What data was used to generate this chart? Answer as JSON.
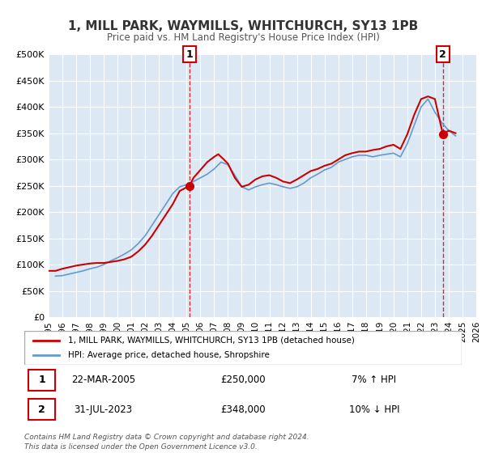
{
  "title": "1, MILL PARK, WAYMILLS, WHITCHURCH, SY13 1PB",
  "subtitle": "Price paid vs. HM Land Registry's House Price Index (HPI)",
  "background_color": "#ffffff",
  "plot_bg_color": "#dce9f5",
  "grid_color": "#ffffff",
  "ylabel": "",
  "ylim": [
    0,
    500000
  ],
  "yticks": [
    0,
    50000,
    100000,
    150000,
    200000,
    250000,
    300000,
    350000,
    400000,
    450000,
    500000
  ],
  "ytick_labels": [
    "£0",
    "£50K",
    "£100K",
    "£150K",
    "£200K",
    "£250K",
    "£300K",
    "£350K",
    "£400K",
    "£450K",
    "£500K"
  ],
  "xlim_start": 1995,
  "xlim_end": 2026,
  "xticks": [
    1995,
    1996,
    1997,
    1998,
    1999,
    2000,
    2001,
    2002,
    2003,
    2004,
    2005,
    2006,
    2007,
    2008,
    2009,
    2010,
    2011,
    2012,
    2013,
    2014,
    2015,
    2016,
    2017,
    2018,
    2019,
    2020,
    2021,
    2022,
    2023,
    2024,
    2025,
    2026
  ],
  "sale1_x": 2005.22,
  "sale1_y": 250000,
  "sale1_label": "22-MAR-2005",
  "sale1_price": "£250,000",
  "sale1_hpi": "7% ↑ HPI",
  "sale2_x": 2023.58,
  "sale2_y": 348000,
  "sale2_label": "31-JUL-2023",
  "sale2_price": "£348,000",
  "sale2_hpi": "10% ↓ HPI",
  "line1_color": "#cc0000",
  "line2_color": "#6699cc",
  "legend1_label": "1, MILL PARK, WAYMILLS, WHITCHURCH, SY13 1PB (detached house)",
  "legend2_label": "HPI: Average price, detached house, Shropshire",
  "footnote1": "Contains HM Land Registry data © Crown copyright and database right 2024.",
  "footnote2": "This data is licensed under the Open Government Licence v3.0.",
  "hpi_data": {
    "years": [
      1995.5,
      1996.0,
      1996.5,
      1997.0,
      1997.5,
      1998.0,
      1998.5,
      1999.0,
      1999.5,
      2000.0,
      2000.5,
      2001.0,
      2001.5,
      2002.0,
      2002.5,
      2003.0,
      2003.5,
      2004.0,
      2004.5,
      2005.0,
      2005.5,
      2006.0,
      2006.5,
      2007.0,
      2007.5,
      2008.0,
      2008.5,
      2009.0,
      2009.5,
      2010.0,
      2010.5,
      2011.0,
      2011.5,
      2012.0,
      2012.5,
      2013.0,
      2013.5,
      2014.0,
      2014.5,
      2015.0,
      2015.5,
      2016.0,
      2016.5,
      2017.0,
      2017.5,
      2018.0,
      2018.5,
      2019.0,
      2019.5,
      2020.0,
      2020.5,
      2021.0,
      2021.5,
      2022.0,
      2022.5,
      2023.0,
      2023.5,
      2024.0,
      2024.5
    ],
    "values": [
      78000,
      79000,
      82000,
      85000,
      88000,
      92000,
      95000,
      100000,
      107000,
      113000,
      120000,
      128000,
      140000,
      155000,
      175000,
      195000,
      215000,
      235000,
      248000,
      252000,
      258000,
      265000,
      272000,
      282000,
      295000,
      290000,
      270000,
      248000,
      242000,
      248000,
      252000,
      255000,
      252000,
      248000,
      245000,
      248000,
      255000,
      265000,
      272000,
      280000,
      285000,
      295000,
      300000,
      305000,
      308000,
      308000,
      305000,
      308000,
      310000,
      312000,
      305000,
      330000,
      365000,
      400000,
      415000,
      390000,
      370000,
      355000,
      345000
    ]
  },
  "price_data": {
    "years": [
      1995.0,
      1995.5,
      1996.0,
      1996.5,
      1997.0,
      1997.5,
      1998.0,
      1998.5,
      1999.0,
      1999.5,
      2000.0,
      2000.5,
      2001.0,
      2001.5,
      2002.0,
      2002.5,
      2003.0,
      2003.5,
      2004.0,
      2004.5,
      2005.22,
      2005.5,
      2006.0,
      2006.5,
      2007.0,
      2007.3,
      2007.7,
      2008.0,
      2008.5,
      2009.0,
      2009.5,
      2010.0,
      2010.5,
      2011.0,
      2011.5,
      2012.0,
      2012.5,
      2013.0,
      2013.5,
      2014.0,
      2014.5,
      2015.0,
      2015.5,
      2016.0,
      2016.5,
      2017.0,
      2017.5,
      2018.0,
      2018.5,
      2019.0,
      2019.5,
      2020.0,
      2020.5,
      2021.0,
      2021.5,
      2022.0,
      2022.5,
      2023.0,
      2023.58,
      2024.0,
      2024.5
    ],
    "values": [
      88000,
      88000,
      92000,
      95000,
      98000,
      100000,
      102000,
      103000,
      103000,
      105000,
      107000,
      110000,
      115000,
      125000,
      138000,
      155000,
      175000,
      195000,
      215000,
      240000,
      250000,
      265000,
      280000,
      295000,
      305000,
      310000,
      300000,
      292000,
      265000,
      248000,
      252000,
      262000,
      268000,
      270000,
      265000,
      258000,
      255000,
      262000,
      270000,
      278000,
      282000,
      288000,
      292000,
      300000,
      308000,
      312000,
      315000,
      315000,
      318000,
      320000,
      325000,
      328000,
      320000,
      348000,
      385000,
      415000,
      420000,
      415000,
      348000,
      355000,
      350000
    ]
  }
}
